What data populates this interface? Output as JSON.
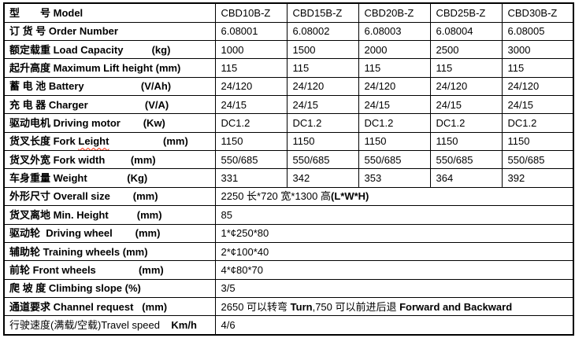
{
  "colors": {
    "background": "#ffffff",
    "border": "#000000",
    "text": "#000000",
    "misspell_underline": "#ff2400"
  },
  "table": {
    "value_col_count": 5,
    "rows": [
      {
        "label": [
          {
            "t": "型　　号 Model",
            "b": true
          }
        ],
        "values": [
          "CBD10B-Z",
          "CBD15B-Z",
          "CBD20B-Z",
          "CBD25B-Z",
          "CBD30B-Z"
        ]
      },
      {
        "label": [
          {
            "t": "订 货 号 Order Number",
            "b": true
          }
        ],
        "values": [
          "6.08001",
          "6.08002",
          "6.08003",
          "6.08004",
          "6.08005"
        ]
      },
      {
        "label": [
          {
            "t": "额定载重 Load Capacity          (kg)",
            "b": true
          }
        ],
        "values": [
          "1000",
          "1500",
          "2000",
          "2500",
          "3000"
        ]
      },
      {
        "label": [
          {
            "t": "起升高度 Maximum Lift height (mm)",
            "b": true
          }
        ],
        "values": [
          "115",
          "115",
          "115",
          "115",
          "115"
        ]
      },
      {
        "label": [
          {
            "t": "蓄 电 池 Battery                    (V/Ah)",
            "b": true
          }
        ],
        "values": [
          "24/120",
          "24/120",
          "24/120",
          "24/120",
          "24/120"
        ]
      },
      {
        "label": [
          {
            "t": "充 电 器 Charger                    (V/A)",
            "b": true
          }
        ],
        "values": [
          "24/15",
          "24/15",
          "24/15",
          "24/15",
          "24/15"
        ]
      },
      {
        "label": [
          {
            "t": "驱动电机 Driving motor        (Kw)",
            "b": true
          }
        ],
        "values": [
          "DC1.2",
          "DC1.2",
          "DC1.2",
          "DC1.2",
          "DC1.2"
        ]
      },
      {
        "label": [
          {
            "t": "货叉长度 Fork ",
            "b": true
          },
          {
            "t": "Leight",
            "b": true,
            "sq": true
          },
          {
            "t": "                   (mm)",
            "b": true
          }
        ],
        "values": [
          "1150",
          "1150",
          "1150",
          "1150",
          "1150"
        ]
      },
      {
        "label": [
          {
            "t": "货叉外宽 Fork width         (mm)",
            "b": true
          }
        ],
        "values": [
          "550/685",
          "550/685",
          "550/685",
          "550/685",
          "550/685"
        ]
      },
      {
        "label": [
          {
            "t": "车身重量 Weight              (Kg)",
            "b": true
          }
        ],
        "values": [
          "331",
          "342",
          "353",
          "364",
          "392"
        ]
      },
      {
        "label": [
          {
            "t": "外形尺寸 Overall size        (mm)",
            "b": true
          }
        ],
        "merged": [
          {
            "t": "2250 长*720 宽*1300 高",
            "b": false
          },
          {
            "t": "(L*W*H)",
            "b": true
          }
        ]
      },
      {
        "label": [
          {
            "t": "货叉离地 Min. Height          (mm)",
            "b": true
          }
        ],
        "merged": [
          {
            "t": "85",
            "b": false
          }
        ]
      },
      {
        "label": [
          {
            "t": "驱动轮  Driving wheel        (mm)",
            "b": true
          }
        ],
        "merged": [
          {
            "t": "1*¢250*80",
            "b": false
          }
        ]
      },
      {
        "label": [
          {
            "t": "辅助轮 Training wheels (mm)",
            "b": true
          }
        ],
        "merged": [
          {
            "t": "2*¢100*40",
            "b": false
          }
        ]
      },
      {
        "label": [
          {
            "t": "前轮 Front wheels               (mm)",
            "b": true
          }
        ],
        "merged": [
          {
            "t": "4*¢80*70",
            "b": false
          }
        ]
      },
      {
        "label": [
          {
            "t": "爬 坡 度 Climbing slope (%)",
            "b": true
          }
        ],
        "merged": [
          {
            "t": "3/5",
            "b": false
          }
        ]
      },
      {
        "label": [
          {
            "t": "通道要求 Channel request   (mm)",
            "b": true
          }
        ],
        "merged": [
          {
            "t": "2650 可以转弯 ",
            "b": false
          },
          {
            "t": "Turn",
            "b": true
          },
          {
            "t": ",750 可以前进后退 ",
            "b": false
          },
          {
            "t": "Forward and Backward",
            "b": true
          }
        ]
      },
      {
        "label": [
          {
            "t": "行驶速度(满载/空载)Travel speed    ",
            "b": false
          },
          {
            "t": "Km/h",
            "b": true
          }
        ],
        "merged": [
          {
            "t": "4/6",
            "b": false
          }
        ]
      }
    ]
  }
}
